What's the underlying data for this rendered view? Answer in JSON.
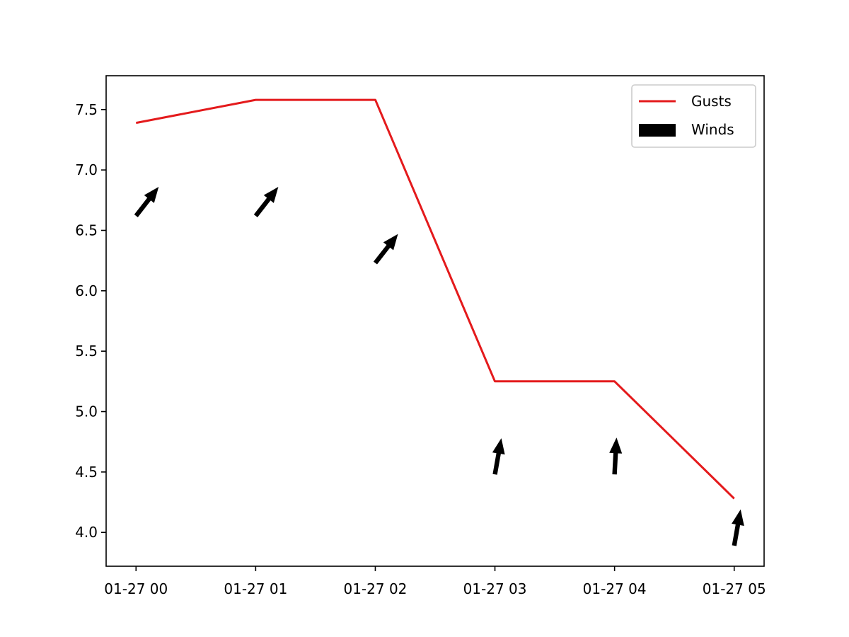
{
  "chart_data": {
    "type": "line",
    "title": "",
    "xlabel": "",
    "ylabel": "",
    "x": [
      "01-27 00",
      "01-27 01",
      "01-27 02",
      "01-27 03",
      "01-27 04",
      "01-27 05"
    ],
    "xlim": [
      "01-26 23:45",
      "01-27 05:15"
    ],
    "ylim": [
      3.72,
      7.78
    ],
    "yticks": [
      "4.0",
      "4.5",
      "5.0",
      "5.5",
      "6.0",
      "6.5",
      "7.0",
      "7.5"
    ],
    "grid": false,
    "legend_position": "upper right",
    "series": [
      {
        "name": "Gusts",
        "kind": "line",
        "color": "#e41a1c",
        "values": [
          7.39,
          7.58,
          7.58,
          5.25,
          5.25,
          4.28
        ]
      },
      {
        "name": "Winds",
        "kind": "quiver",
        "color": "#000000",
        "values": [
          6.62,
          6.62,
          6.23,
          4.48,
          4.48,
          3.89
        ],
        "direction_icon": "arrow-icon",
        "angles_deg": [
          52,
          52,
          52,
          80,
          87,
          80
        ]
      }
    ],
    "legend": [
      {
        "label": "Gusts",
        "icon": "line-swatch"
      },
      {
        "label": "Winds",
        "icon": "rect-swatch"
      }
    ]
  }
}
